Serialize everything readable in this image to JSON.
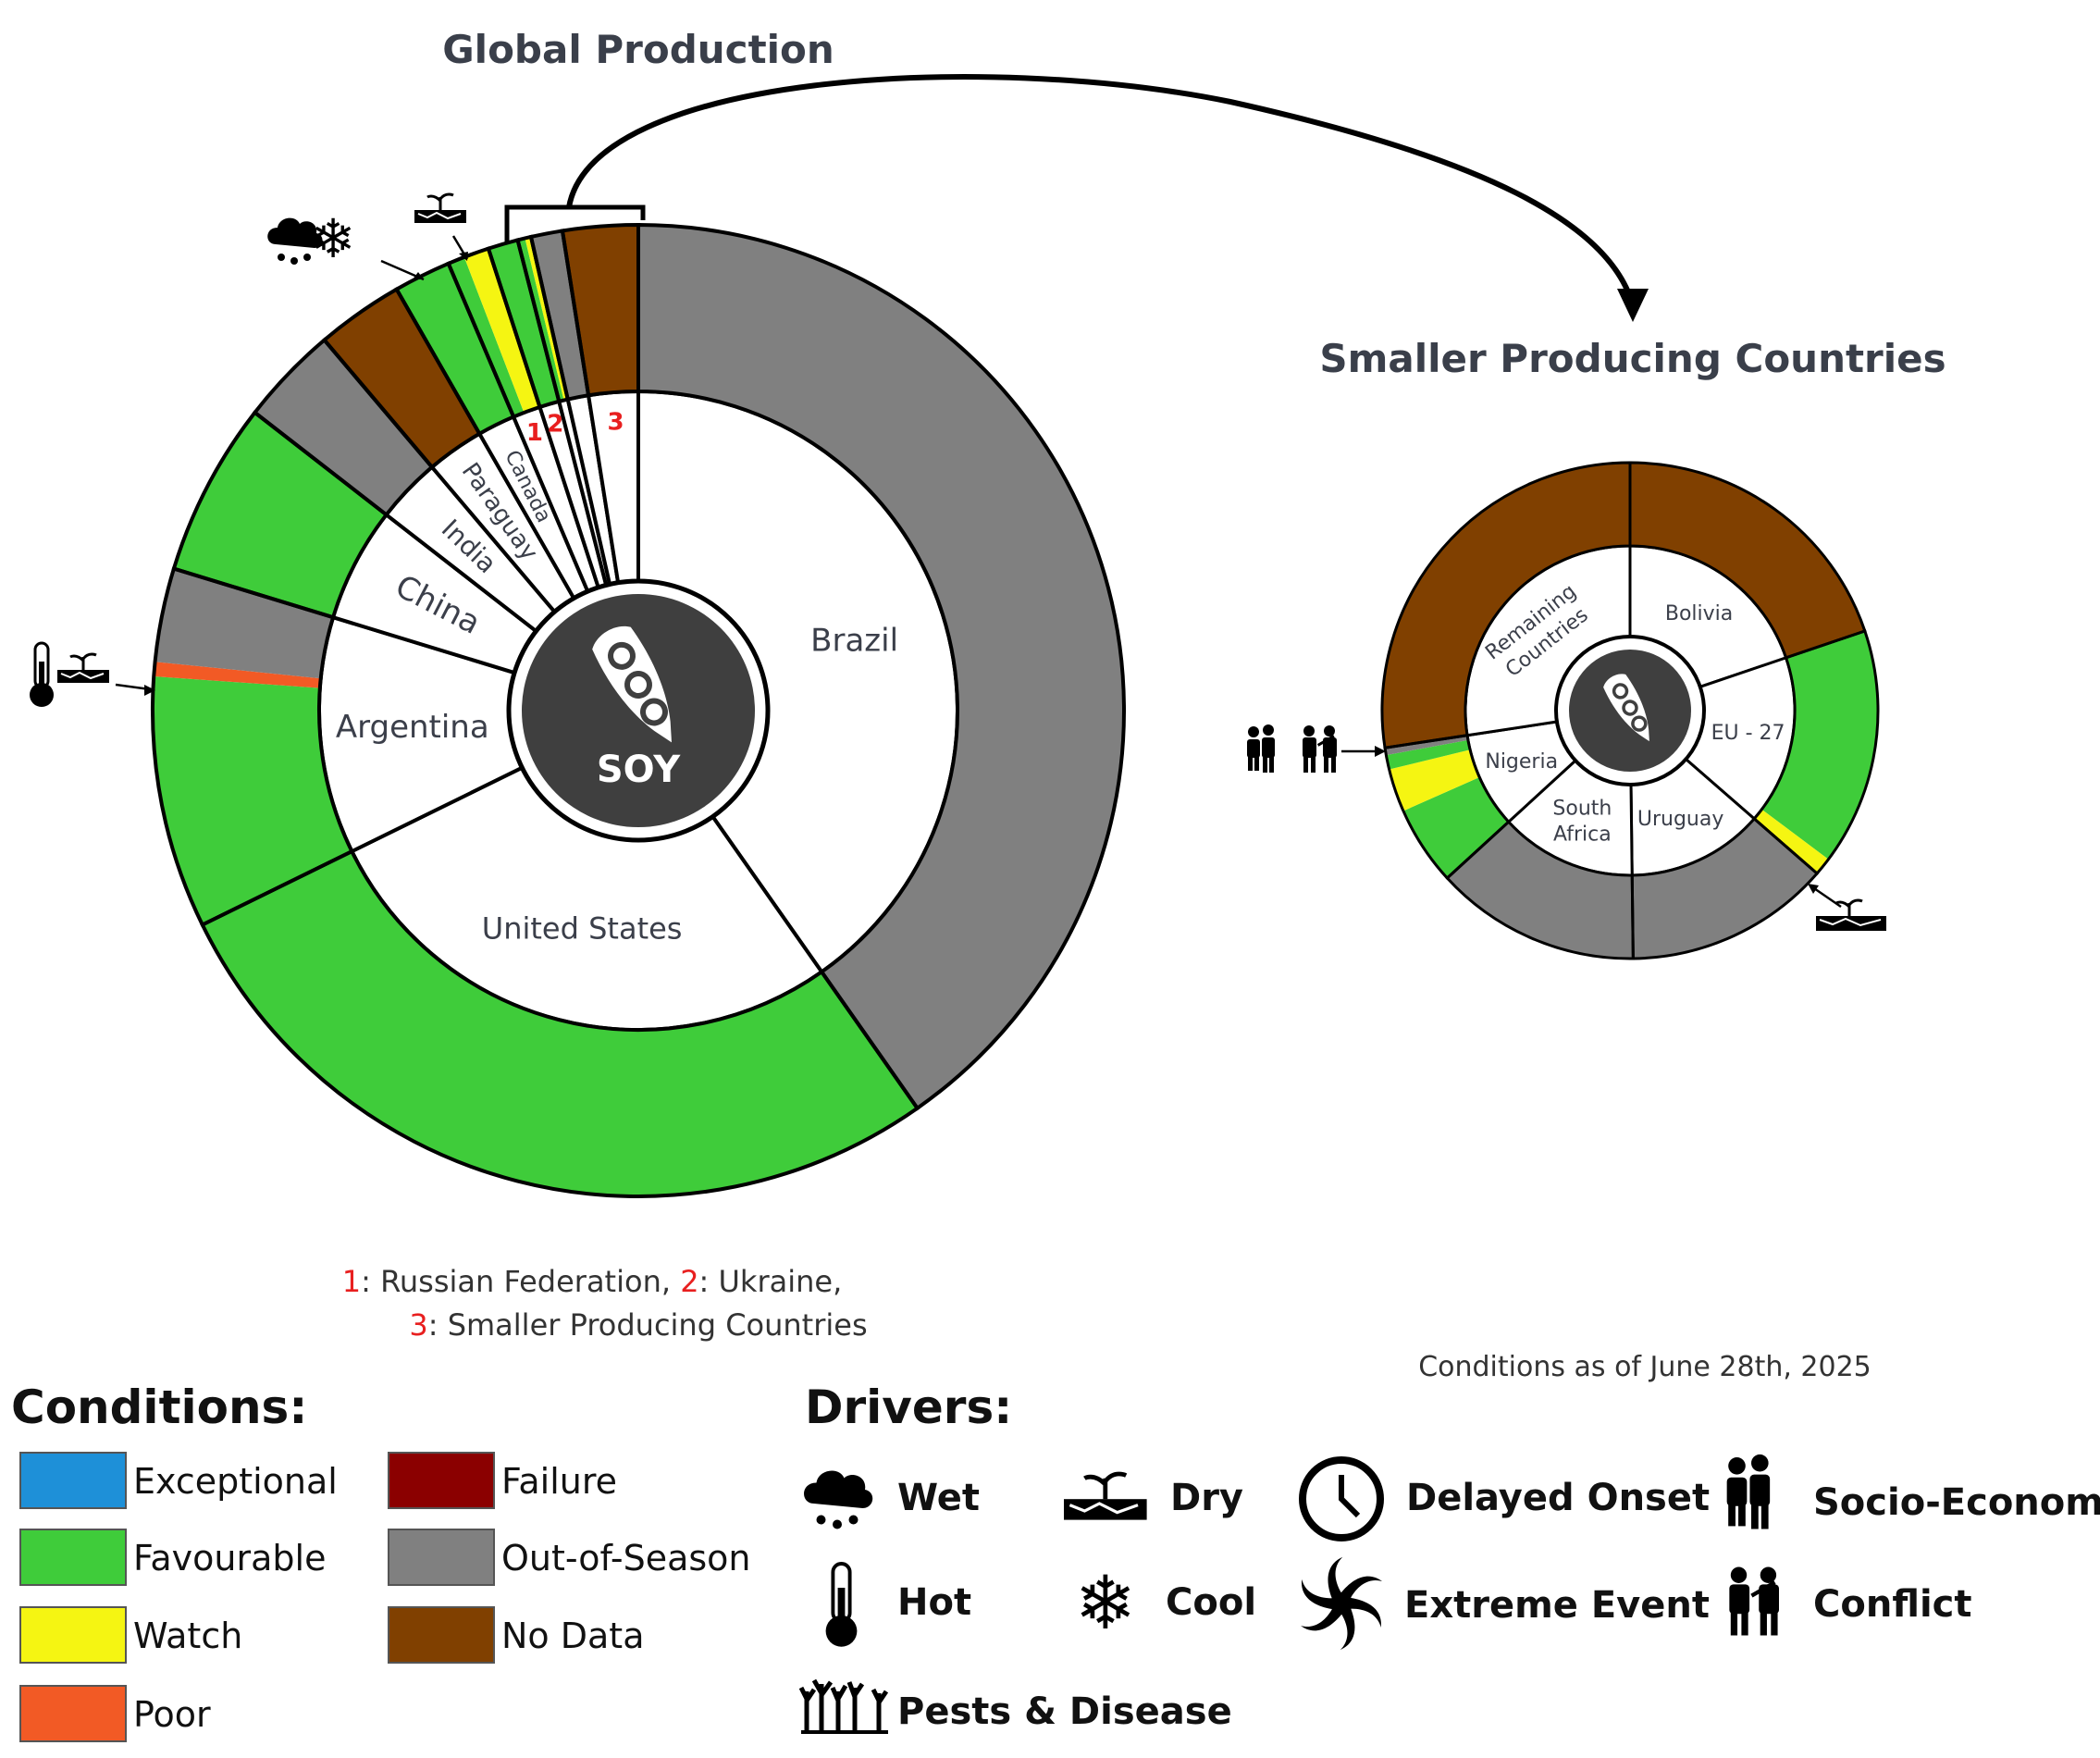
{
  "titles": {
    "global": "Global Production",
    "small": "Smaller Producing Countries"
  },
  "center_label": "SOY",
  "date_note": "Conditions as of June 28th, 2025",
  "footnote": {
    "n1": "1",
    "t1": ": Russian Federation, ",
    "n2": "2",
    "t2": ": Ukraine,",
    "n3": "3",
    "t3": ": Smaller Producing Countries"
  },
  "legend": {
    "conditions_title": "Conditions:",
    "conditions": [
      {
        "label": "Exceptional",
        "color": "#1e90d8"
      },
      {
        "label": "Favourable",
        "color": "#3fcc3a"
      },
      {
        "label": "Watch",
        "color": "#f5f512"
      },
      {
        "label": "Poor",
        "color": "#f25a25"
      },
      {
        "label": "Failure",
        "color": "#8b0000"
      },
      {
        "label": "Out-of-Season",
        "color": "#808080"
      },
      {
        "label": "No Data",
        "color": "#804000"
      }
    ],
    "drivers_title": "Drivers:",
    "drivers": [
      {
        "label": "Wet",
        "icon": "wet-icon"
      },
      {
        "label": "Dry",
        "icon": "dry-icon"
      },
      {
        "label": "Delayed Onset",
        "icon": "clock-icon"
      },
      {
        "label": "Socio-Economic",
        "icon": "socio-economic-icon"
      },
      {
        "label": "Hot",
        "icon": "thermometer-icon"
      },
      {
        "label": "Cool",
        "icon": "snowflake-icon"
      },
      {
        "label": "Extreme Event",
        "icon": "extreme-event-icon"
      },
      {
        "label": "Conflict",
        "icon": "conflict-icon"
      },
      {
        "label": "Pests & Disease",
        "icon": "pests-disease-icon"
      }
    ]
  },
  "chart_data": [
    {
      "type": "sunburst",
      "title": "Global Production",
      "center": "SOY",
      "unit": "share of global production (%)",
      "countries": [
        {
          "name": "Brazil",
          "share": 40.3,
          "segments": [
            {
              "condition": "Out-of-Season",
              "fraction": 1.0
            }
          ]
        },
        {
          "name": "United States",
          "share": 27.5,
          "segments": [
            {
              "condition": "Favourable",
              "fraction": 1.0
            }
          ]
        },
        {
          "name": "Argentina",
          "share": 12.0,
          "drivers": [
            "Hot",
            "Dry"
          ],
          "segments": [
            {
              "condition": "Favourable",
              "fraction": 0.7
            },
            {
              "condition": "Poor",
              "fraction": 0.04
            },
            {
              "condition": "Out-of-Season",
              "fraction": 0.26
            }
          ]
        },
        {
          "name": "China",
          "share": 5.8,
          "segments": [
            {
              "condition": "Favourable",
              "fraction": 1.0
            }
          ]
        },
        {
          "name": "India",
          "share": 3.3,
          "segments": [
            {
              "condition": "Out-of-Season",
              "fraction": 1.0
            }
          ]
        },
        {
          "name": "Paraguay",
          "share": 2.9,
          "segments": [
            {
              "condition": "No Data",
              "fraction": 1.0
            }
          ]
        },
        {
          "name": "Canada",
          "share": 1.9,
          "drivers": [
            "Wet",
            "Cool"
          ],
          "segments": [
            {
              "condition": "Favourable",
              "fraction": 1.0
            }
          ]
        },
        {
          "name": "1",
          "share": 1.4,
          "drivers": [
            "Dry"
          ],
          "segments": [
            {
              "condition": "Favourable",
              "fraction": 0.4
            },
            {
              "condition": "Watch",
              "fraction": 0.6
            }
          ]
        },
        {
          "name": "2",
          "share": 1.0,
          "segments": [
            {
              "condition": "Favourable",
              "fraction": 1.0
            }
          ]
        },
        {
          "name": "",
          "share": 0.45,
          "segments": [
            {
              "condition": "Favourable",
              "fraction": 0.55
            },
            {
              "condition": "Watch",
              "fraction": 0.45
            }
          ]
        },
        {
          "name": "",
          "share": 1.05,
          "segments": [
            {
              "condition": "Out-of-Season",
              "fraction": 1.0
            }
          ]
        },
        {
          "name": "3",
          "share": 2.5,
          "segments": [
            {
              "condition": "No Data",
              "fraction": 1.0
            }
          ]
        }
      ]
    },
    {
      "type": "sunburst",
      "title": "Smaller Producing Countries",
      "unit": "share of smaller producing countries (%)",
      "countries": [
        {
          "name": "Bolivia",
          "share": 19.8,
          "segments": [
            {
              "condition": "No Data",
              "fraction": 1.0
            }
          ]
        },
        {
          "name": "EU - 27",
          "share": 16.6,
          "drivers": [
            "Dry"
          ],
          "segments": [
            {
              "condition": "Favourable",
              "fraction": 0.93
            },
            {
              "condition": "Watch",
              "fraction": 0.07
            }
          ]
        },
        {
          "name": "Uruguay",
          "share": 13.4,
          "segments": [
            {
              "condition": "Out-of-Season",
              "fraction": 1.0
            }
          ]
        },
        {
          "name": "South Africa",
          "share": 13.4,
          "segments": [
            {
              "condition": "Out-of-Season",
              "fraction": 1.0
            }
          ]
        },
        {
          "name": "Nigeria",
          "share": 9.4,
          "drivers": [
            "Socio-Economic",
            "Conflict"
          ],
          "segments": [
            {
              "condition": "Favourable",
              "fraction": 0.55
            },
            {
              "condition": "Watch",
              "fraction": 0.3
            },
            {
              "condition": "Favourable",
              "fraction": 0.1
            },
            {
              "condition": "Out-of-Season",
              "fraction": 0.05
            }
          ]
        },
        {
          "name": "Remaining Countries",
          "share": 27.4,
          "segments": [
            {
              "condition": "No Data",
              "fraction": 1.0
            }
          ]
        }
      ]
    }
  ]
}
